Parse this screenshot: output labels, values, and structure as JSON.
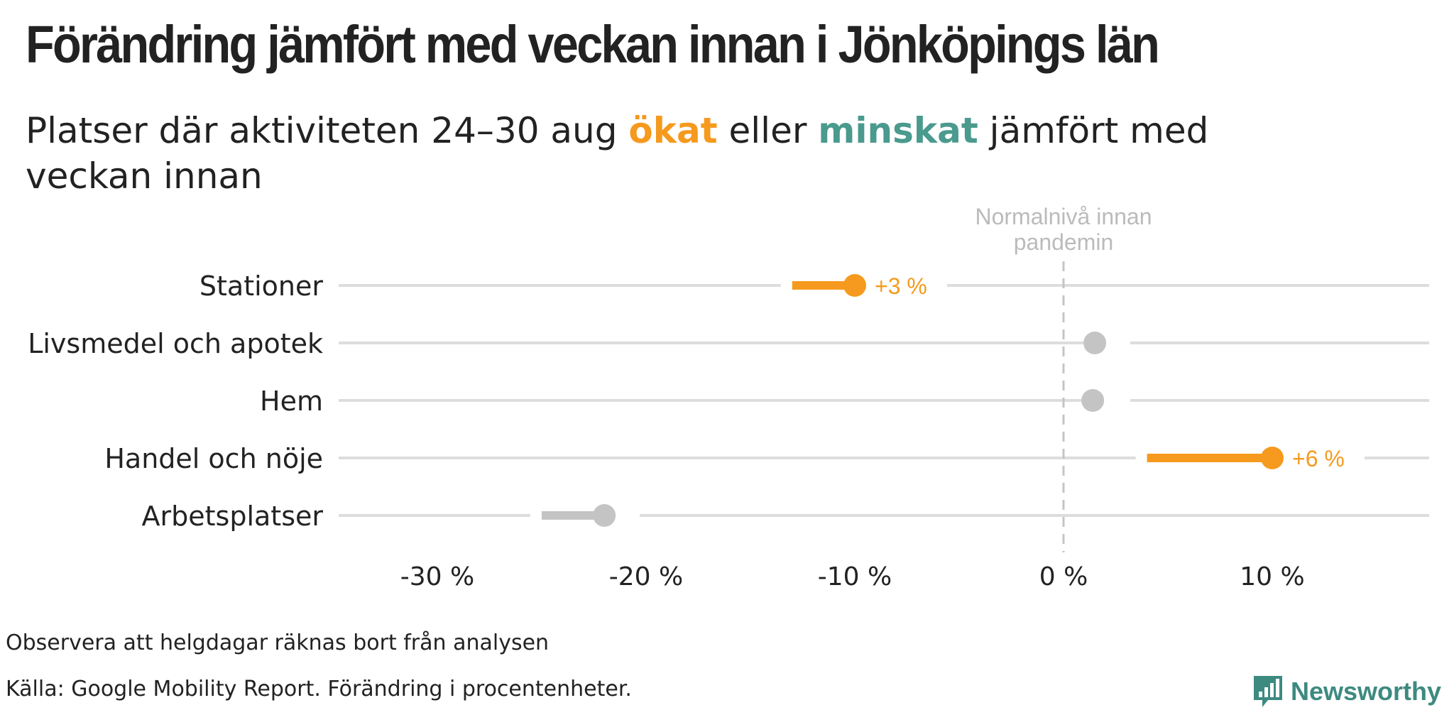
{
  "header": {
    "title": "Förändring jämfört med veckan innan i Jönköpings län",
    "subtitle_pre": "Platser där aktiviteten 24–30 aug ",
    "subtitle_inc": "ökat",
    "subtitle_mid": " eller ",
    "subtitle_dec": "minskat",
    "subtitle_post": " jämfört med veckan innan"
  },
  "colors": {
    "increase": "#f59a1e",
    "decrease": "#4a9a8e",
    "neutral": "#c4c4c4",
    "gridline": "#dddddd",
    "refline": "#c4c4c4",
    "text": "#222222",
    "brand": "#3d8a80"
  },
  "chart_data": {
    "type": "dumbbell",
    "x_label_suffix": " %",
    "x_ticks": [
      -30,
      -20,
      -10,
      0,
      10
    ],
    "x_tick_labels": [
      "-30 %",
      "-20 %",
      "-10 %",
      "0 %",
      "10 %"
    ],
    "xlim": [
      -35,
      17.5
    ],
    "reference_line": {
      "x": 0,
      "label": "Normalnivå innan pandemin"
    },
    "categories": [
      "Stationer",
      "Livsmedel och apotek",
      "Hem",
      "Handel och nöje",
      "Arbetsplatser"
    ],
    "previous_week": [
      -13,
      1.5,
      1.5,
      4,
      -25
    ],
    "current_week": [
      -10,
      1.5,
      1.4,
      10,
      -22
    ],
    "change": [
      3,
      0,
      0,
      6,
      3
    ],
    "change_labels": [
      "+3 %",
      "",
      "",
      "+6 %",
      ""
    ],
    "status": [
      "increase",
      "neutral",
      "neutral",
      "increase",
      "neutral"
    ]
  },
  "footer": {
    "note": "Observera att helgdagar räknas bort från analysen",
    "source": "Källa: Google Mobility Report. Förändring i procentenheter.",
    "brand": "Newsworthy"
  }
}
